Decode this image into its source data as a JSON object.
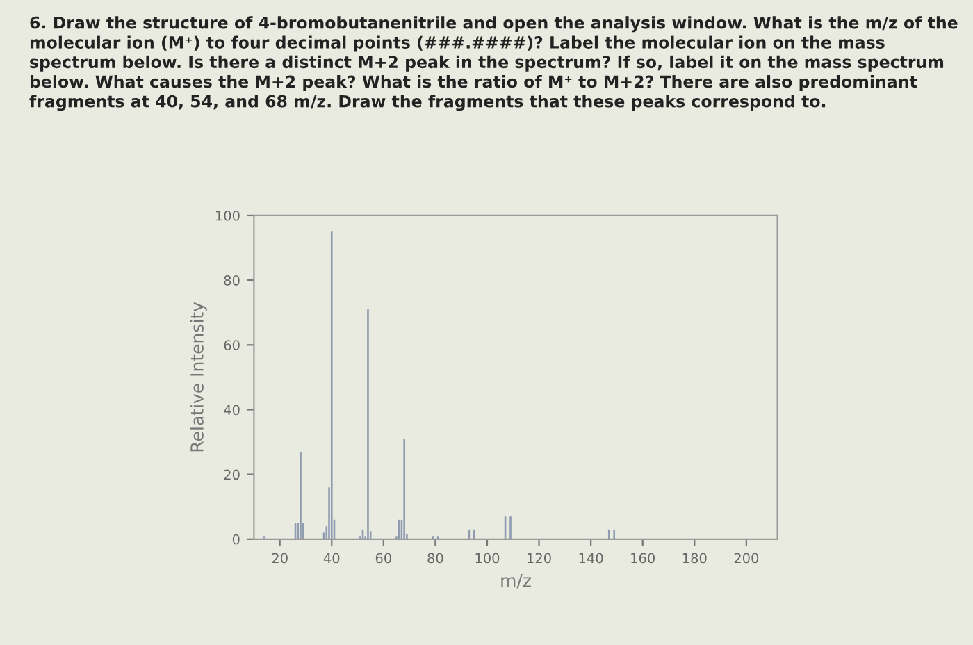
{
  "chart_data": {
    "type": "bar",
    "title": "6. Draw the structure of 4-bromobutanenitrile and open the analysis window. What is the m/z of the molecular ion (M⁺) to four decimal points (###.####)? Label the molecular ion on the mass spectrum below. Is there a distinct M+2 peak in the spectrum? If so, label it on the mass spectrum below. What causes the M+2 peak? What is the ratio of M⁺ to M+2? There are also predominant fragments at 40, 54, and 68 m/z. Draw the fragments that these peaks correspond to.",
    "xlabel": "m/z",
    "ylabel": "Relative Intensity",
    "x": [
      14,
      26,
      27,
      28,
      29,
      37,
      38,
      39,
      40,
      41,
      51,
      52,
      53,
      54,
      55,
      65,
      66,
      67,
      68,
      69,
      79,
      81,
      93,
      95,
      107,
      109,
      147,
      149
    ],
    "values": [
      1,
      5,
      5,
      27,
      5,
      2,
      4,
      16,
      95,
      6,
      1,
      3,
      1,
      71,
      2.5,
      1,
      6,
      6,
      31,
      1.5,
      1,
      1,
      3,
      3,
      7,
      7,
      3,
      3
    ],
    "color": "#8f9bb0",
    "xlim": [
      10,
      212
    ],
    "ylim": [
      0,
      100
    ],
    "xticks": [
      20,
      40,
      60,
      80,
      100,
      120,
      140,
      160,
      180,
      200
    ],
    "yticks": [
      0,
      20,
      40,
      60,
      80,
      100
    ],
    "grid": false
  }
}
